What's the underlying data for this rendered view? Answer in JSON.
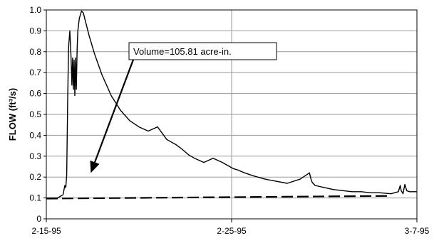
{
  "chart_data": {
    "type": "line",
    "title": "",
    "xlabel": "",
    "ylabel": "FLOW  (ft³/s)",
    "ylim": [
      0,
      1.0
    ],
    "yticks": [
      "0",
      "0.1",
      "0.2",
      "0.3",
      "0.4",
      "0.5",
      "0.6",
      "0.7",
      "0.8",
      "0.9",
      "1.0"
    ],
    "xlim_days": [
      0,
      20
    ],
    "xticks": [
      {
        "day": 0,
        "label": "2-15-95"
      },
      {
        "day": 10,
        "label": "2-25-95"
      },
      {
        "day": 20,
        "label": "3-7-95"
      }
    ],
    "grid": {
      "horizontal": true,
      "vertical_at_ticks": true
    },
    "annotation": {
      "text": "Volume=105.81 acre-in.",
      "points_to": {
        "day": 2.4,
        "y": 0.22
      }
    },
    "series": [
      {
        "style": "solid",
        "color": "#000000",
        "x_days": [
          0,
          0.3,
          0.6,
          0.9,
          1.0,
          1.05,
          1.1,
          1.15,
          1.2,
          1.27,
          1.33,
          1.38,
          1.42,
          1.46,
          1.5,
          1.54,
          1.58,
          1.62,
          1.66,
          1.7,
          1.78,
          1.9,
          2.0,
          2.1,
          2.3,
          2.6,
          3.0,
          3.5,
          4.0,
          4.5,
          5.0,
          5.5,
          6.0,
          6.5,
          7.0,
          7.3,
          7.5,
          7.7,
          8.0,
          8.5,
          9.0,
          9.5,
          9.9,
          10.0,
          10.1,
          10.3,
          10.7,
          11.2,
          11.8,
          12.4,
          13.0,
          13.7,
          14.2,
          14.3,
          14.35,
          14.5,
          15.0,
          15.5,
          16.0,
          16.5,
          17.0,
          17.5,
          18.0,
          18.6,
          19.0,
          19.1,
          19.15,
          19.25,
          19.35,
          19.45,
          19.6,
          20.0
        ],
        "y": [
          0.1,
          0.1,
          0.1,
          0.115,
          0.16,
          0.15,
          0.21,
          0.55,
          0.82,
          0.9,
          0.78,
          0.64,
          0.77,
          0.62,
          0.76,
          0.59,
          0.77,
          0.62,
          0.81,
          0.9,
          0.96,
          0.995,
          0.985,
          0.95,
          0.88,
          0.79,
          0.69,
          0.59,
          0.52,
          0.47,
          0.44,
          0.42,
          0.44,
          0.38,
          0.355,
          0.335,
          0.32,
          0.305,
          0.29,
          0.27,
          0.29,
          0.27,
          0.25,
          0.245,
          0.24,
          0.235,
          0.22,
          0.205,
          0.19,
          0.18,
          0.17,
          0.19,
          0.22,
          0.185,
          0.175,
          0.16,
          0.15,
          0.14,
          0.135,
          0.13,
          0.13,
          0.125,
          0.125,
          0.12,
          0.13,
          0.16,
          0.135,
          0.12,
          0.165,
          0.135,
          0.13,
          0.13
        ]
      },
      {
        "style": "dashed",
        "color": "#000000",
        "x_days": [
          0,
          18.6
        ],
        "y": [
          0.097,
          0.11
        ]
      }
    ]
  }
}
